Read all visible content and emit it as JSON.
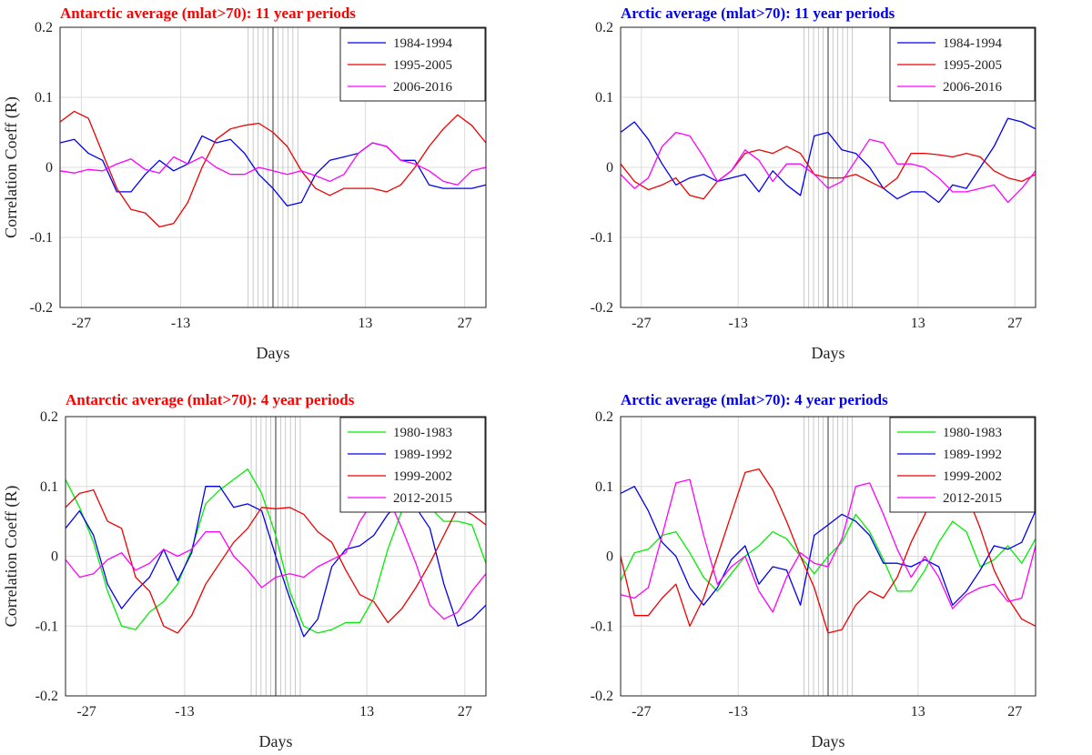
{
  "chart_data": [
    {
      "type": "line",
      "title": "Antarctic average (mlat>70): 11 year periods",
      "title_color": "#ff0000",
      "xlabel": "Days",
      "ylabel": "Correlation Coeff (R)",
      "xlim": [
        -30,
        30
      ],
      "ylim": [
        -0.2,
        0.2
      ],
      "xticks": [
        -27,
        -13,
        13,
        27
      ],
      "yticks": [
        -0.2,
        -0.1,
        0,
        0.1,
        0.2
      ],
      "ytick_labels": [
        "-0.2",
        "-0.1",
        "0",
        "0.1",
        "0.2"
      ],
      "legend_position": "top-right",
      "series": [
        {
          "name": "1984-1994",
          "color": "#0000ee",
          "x": [
            -30,
            -28,
            -26,
            -24,
            -22,
            -20,
            -18,
            -16,
            -14,
            -12,
            -10,
            -8,
            -6,
            -4,
            -2,
            0,
            2,
            4,
            6,
            8,
            10,
            12,
            14,
            16,
            18,
            20,
            22,
            24,
            26,
            28,
            30
          ],
          "y": [
            0.035,
            0.04,
            0.02,
            0.01,
            -0.035,
            -0.035,
            -0.01,
            0.01,
            -0.005,
            0.005,
            0.045,
            0.035,
            0.04,
            0.02,
            -0.01,
            -0.03,
            -0.055,
            -0.05,
            -0.01,
            0.01,
            0.015,
            0.02,
            0.035,
            0.03,
            0.01,
            0.01,
            -0.025,
            -0.03,
            -0.03,
            -0.03,
            -0.025
          ]
        },
        {
          "name": "1995-2005",
          "color": "#ee0000",
          "x": [
            -30,
            -28,
            -26,
            -24,
            -22,
            -20,
            -18,
            -16,
            -14,
            -12,
            -10,
            -8,
            -6,
            -4,
            -2,
            0,
            2,
            4,
            6,
            8,
            10,
            12,
            14,
            16,
            18,
            20,
            22,
            24,
            26,
            28,
            30
          ],
          "y": [
            0.065,
            0.08,
            0.07,
            0.02,
            -0.03,
            -0.06,
            -0.065,
            -0.085,
            -0.08,
            -0.05,
            0.0,
            0.04,
            0.055,
            0.06,
            0.063,
            0.05,
            0.03,
            -0.005,
            -0.03,
            -0.04,
            -0.03,
            -0.03,
            -0.03,
            -0.035,
            -0.025,
            0.0,
            0.03,
            0.055,
            0.075,
            0.06,
            0.035
          ]
        },
        {
          "name": "2006-2016",
          "color": "#ff00ff",
          "x": [
            -30,
            -28,
            -26,
            -24,
            -22,
            -20,
            -18,
            -16,
            -14,
            -12,
            -10,
            -8,
            -6,
            -4,
            -2,
            0,
            2,
            4,
            6,
            8,
            10,
            12,
            14,
            16,
            18,
            20,
            22,
            24,
            26,
            28,
            30
          ],
          "y": [
            -0.005,
            -0.008,
            -0.003,
            -0.005,
            0.005,
            0.012,
            -0.003,
            -0.008,
            0.015,
            0.005,
            0.015,
            0.0,
            -0.01,
            -0.01,
            0.0,
            -0.005,
            -0.01,
            -0.005,
            -0.012,
            -0.02,
            -0.01,
            0.02,
            0.035,
            0.03,
            0.01,
            0.005,
            -0.005,
            -0.02,
            -0.025,
            -0.005,
            0.0
          ]
        }
      ]
    },
    {
      "type": "line",
      "title": "Arctic average (mlat>70): 11 year periods",
      "title_color": "#0000ee",
      "xlabel": "Days",
      "ylabel": "",
      "xlim": [
        -30,
        30
      ],
      "ylim": [
        -0.2,
        0.2
      ],
      "xticks": [
        -27,
        -13,
        13,
        27
      ],
      "yticks": [
        -0.2,
        -0.1,
        0,
        0.1,
        0.2
      ],
      "ytick_labels": [
        "-0.2",
        "-0.1",
        "0",
        "0.1",
        "0.2"
      ],
      "legend_position": "top-right",
      "series": [
        {
          "name": "1984-1994",
          "color": "#0000ee",
          "x": [
            -30,
            -28,
            -26,
            -24,
            -22,
            -20,
            -18,
            -16,
            -14,
            -12,
            -10,
            -8,
            -6,
            -4,
            -2,
            0,
            2,
            4,
            6,
            8,
            10,
            12,
            14,
            16,
            18,
            20,
            22,
            24,
            26,
            28,
            30
          ],
          "y": [
            0.05,
            0.065,
            0.04,
            0.005,
            -0.025,
            -0.015,
            -0.01,
            -0.02,
            -0.015,
            -0.01,
            -0.035,
            -0.005,
            -0.025,
            -0.04,
            0.045,
            0.05,
            0.025,
            0.02,
            0.0,
            -0.03,
            -0.045,
            -0.035,
            -0.035,
            -0.05,
            -0.025,
            -0.03,
            0.0,
            0.03,
            0.07,
            0.065,
            0.055
          ]
        },
        {
          "name": "1995-2005",
          "color": "#ee0000",
          "x": [
            -30,
            -28,
            -26,
            -24,
            -22,
            -20,
            -18,
            -16,
            -14,
            -12,
            -10,
            -8,
            -6,
            -4,
            -2,
            0,
            2,
            4,
            6,
            8,
            10,
            12,
            14,
            16,
            18,
            20,
            22,
            24,
            26,
            28,
            30
          ],
          "y": [
            0.005,
            -0.02,
            -0.032,
            -0.025,
            -0.015,
            -0.04,
            -0.045,
            -0.02,
            -0.005,
            0.02,
            0.025,
            0.02,
            0.03,
            0.02,
            -0.01,
            -0.015,
            -0.015,
            -0.01,
            -0.02,
            -0.03,
            -0.015,
            0.02,
            0.02,
            0.018,
            0.015,
            0.02,
            0.015,
            -0.005,
            -0.015,
            -0.02,
            -0.01
          ]
        },
        {
          "name": "2006-2016",
          "color": "#ff00ff",
          "x": [
            -30,
            -28,
            -26,
            -24,
            -22,
            -20,
            -18,
            -16,
            -14,
            -12,
            -10,
            -8,
            -6,
            -4,
            -2,
            0,
            2,
            4,
            6,
            8,
            10,
            12,
            14,
            16,
            18,
            20,
            22,
            24,
            26,
            28,
            30
          ],
          "y": [
            -0.01,
            -0.03,
            -0.015,
            0.03,
            0.05,
            0.045,
            0.015,
            -0.02,
            -0.005,
            0.025,
            0.01,
            -0.02,
            0.005,
            0.005,
            -0.01,
            -0.03,
            -0.02,
            0.01,
            0.04,
            0.035,
            0.005,
            0.005,
            0.0,
            -0.015,
            -0.035,
            -0.035,
            -0.03,
            -0.025,
            -0.05,
            -0.03,
            -0.005
          ]
        }
      ]
    },
    {
      "type": "line",
      "title": "Antarctic average (mlat>70): 4 year periods",
      "title_color": "#ff0000",
      "xlabel": "Days",
      "ylabel": "Correlation Coeff (R)",
      "xlim": [
        -30,
        30
      ],
      "ylim": [
        -0.2,
        0.2
      ],
      "xticks": [
        -27,
        -13,
        13,
        27
      ],
      "yticks": [
        -0.2,
        -0.1,
        0,
        0.1,
        0.2
      ],
      "ytick_labels": [
        "-0.2",
        "-0.1",
        "0",
        "0.1",
        "0.2"
      ],
      "legend_position": "top-right",
      "series": [
        {
          "name": "1980-1983",
          "color": "#00ee00",
          "x": [
            -30,
            -28,
            -26,
            -24,
            -22,
            -20,
            -18,
            -16,
            -14,
            -12,
            -10,
            -8,
            -6,
            -4,
            -2,
            0,
            2,
            4,
            6,
            8,
            10,
            12,
            14,
            16,
            18,
            20,
            22,
            24,
            26,
            28,
            30
          ],
          "y": [
            0.11,
            0.07,
            0.02,
            -0.05,
            -0.1,
            -0.105,
            -0.08,
            -0.065,
            -0.04,
            0.01,
            0.075,
            0.095,
            0.11,
            0.125,
            0.09,
            0.03,
            -0.05,
            -0.1,
            -0.11,
            -0.105,
            -0.095,
            -0.095,
            -0.06,
            0.01,
            0.065,
            0.075,
            0.07,
            0.05,
            0.05,
            0.045,
            -0.01
          ]
        },
        {
          "name": "1989-1992",
          "color": "#0000ee",
          "x": [
            -30,
            -28,
            -26,
            -24,
            -22,
            -20,
            -18,
            -16,
            -14,
            -12,
            -10,
            -8,
            -6,
            -4,
            -2,
            0,
            2,
            4,
            6,
            8,
            10,
            12,
            14,
            16,
            18,
            20,
            22,
            24,
            26,
            28,
            30
          ],
          "y": [
            0.04,
            0.065,
            0.03,
            -0.04,
            -0.075,
            -0.05,
            -0.03,
            0.01,
            -0.035,
            0.005,
            0.1,
            0.1,
            0.07,
            0.075,
            0.065,
            0.0,
            -0.06,
            -0.115,
            -0.09,
            -0.015,
            0.01,
            0.015,
            0.03,
            0.06,
            0.08,
            0.07,
            0.04,
            -0.04,
            -0.1,
            -0.09,
            -0.07
          ]
        },
        {
          "name": "1999-2002",
          "color": "#ee0000",
          "x": [
            -30,
            -28,
            -26,
            -24,
            -22,
            -20,
            -18,
            -16,
            -14,
            -12,
            -10,
            -8,
            -6,
            -4,
            -2,
            0,
            2,
            4,
            6,
            8,
            10,
            12,
            14,
            16,
            18,
            20,
            22,
            24,
            26,
            28,
            30
          ],
          "y": [
            0.07,
            0.09,
            0.095,
            0.05,
            0.04,
            -0.03,
            -0.05,
            -0.1,
            -0.11,
            -0.085,
            -0.04,
            -0.01,
            0.02,
            0.04,
            0.07,
            0.068,
            0.07,
            0.06,
            0.035,
            0.02,
            -0.02,
            -0.055,
            -0.065,
            -0.095,
            -0.075,
            -0.045,
            -0.01,
            0.03,
            0.07,
            0.06,
            0.045
          ]
        },
        {
          "name": "2012-2015",
          "color": "#ff00ff",
          "x": [
            -30,
            -28,
            -26,
            -24,
            -22,
            -20,
            -18,
            -16,
            -14,
            -12,
            -10,
            -8,
            -6,
            -4,
            -2,
            0,
            2,
            4,
            6,
            8,
            10,
            12,
            14,
            16,
            18,
            20,
            22,
            24,
            26,
            28,
            30
          ],
          "y": [
            -0.005,
            -0.03,
            -0.025,
            -0.005,
            0.005,
            -0.02,
            -0.01,
            0.01,
            0.0,
            0.01,
            0.035,
            0.035,
            0.0,
            -0.02,
            -0.045,
            -0.03,
            -0.025,
            -0.03,
            -0.015,
            -0.005,
            0.005,
            0.05,
            0.08,
            0.085,
            0.04,
            -0.01,
            -0.07,
            -0.09,
            -0.08,
            -0.05,
            -0.025
          ]
        }
      ]
    },
    {
      "type": "line",
      "title": "Arctic average (mlat>70): 4 year periods",
      "title_color": "#0000ee",
      "xlabel": "Days",
      "ylabel": "",
      "xlim": [
        -30,
        30
      ],
      "ylim": [
        -0.2,
        0.2
      ],
      "xticks": [
        -27,
        -13,
        13,
        27
      ],
      "yticks": [
        -0.2,
        -0.1,
        0,
        0.1,
        0.2
      ],
      "ytick_labels": [
        "-0.2",
        "-0.1",
        "0",
        "0.1",
        "0.2"
      ],
      "legend_position": "top-right",
      "series": [
        {
          "name": "1980-1983",
          "color": "#00ee00",
          "x": [
            -30,
            -28,
            -26,
            -24,
            -22,
            -20,
            -18,
            -16,
            -14,
            -12,
            -10,
            -8,
            -6,
            -4,
            -2,
            0,
            2,
            4,
            6,
            8,
            10,
            12,
            14,
            16,
            18,
            20,
            22,
            24,
            26,
            28,
            30
          ],
          "y": [
            -0.035,
            0.005,
            0.01,
            0.03,
            0.035,
            0.005,
            -0.03,
            -0.05,
            -0.025,
            0.0,
            0.015,
            0.035,
            0.025,
            0.0,
            -0.025,
            0.0,
            0.02,
            0.06,
            0.035,
            -0.005,
            -0.05,
            -0.05,
            -0.02,
            0.02,
            0.05,
            0.035,
            -0.015,
            -0.005,
            0.015,
            -0.01,
            0.025
          ]
        },
        {
          "name": "1989-1992",
          "color": "#0000ee",
          "x": [
            -30,
            -28,
            -26,
            -24,
            -22,
            -20,
            -18,
            -16,
            -14,
            -12,
            -10,
            -8,
            -6,
            -4,
            -2,
            0,
            2,
            4,
            6,
            8,
            10,
            12,
            14,
            16,
            18,
            20,
            22,
            24,
            26,
            28,
            30
          ],
          "y": [
            0.09,
            0.1,
            0.065,
            0.02,
            0.0,
            -0.045,
            -0.07,
            -0.045,
            -0.005,
            0.015,
            -0.04,
            -0.015,
            -0.02,
            -0.07,
            0.03,
            0.045,
            0.06,
            0.05,
            0.03,
            -0.01,
            -0.01,
            -0.015,
            -0.005,
            -0.015,
            -0.07,
            -0.05,
            -0.02,
            0.015,
            0.01,
            0.02,
            0.065
          ]
        },
        {
          "name": "1999-2002",
          "color": "#ee0000",
          "x": [
            -30,
            -28,
            -26,
            -24,
            -22,
            -20,
            -18,
            -16,
            -14,
            -12,
            -10,
            -8,
            -6,
            -4,
            -2,
            0,
            2,
            4,
            6,
            8,
            10,
            12,
            14,
            16,
            18,
            20,
            22,
            24,
            26,
            28,
            30
          ],
          "y": [
            0.0,
            -0.085,
            -0.085,
            -0.06,
            -0.04,
            -0.1,
            -0.06,
            0.0,
            0.06,
            0.12,
            0.125,
            0.095,
            0.05,
            0.0,
            -0.045,
            -0.11,
            -0.105,
            -0.07,
            -0.05,
            -0.06,
            -0.03,
            0.02,
            0.06,
            0.11,
            0.12,
            0.09,
            0.04,
            -0.02,
            -0.06,
            -0.09,
            -0.1
          ]
        },
        {
          "name": "2012-2015",
          "color": "#ff00ff",
          "x": [
            -30,
            -28,
            -26,
            -24,
            -22,
            -20,
            -18,
            -16,
            -14,
            -12,
            -10,
            -8,
            -6,
            -4,
            -2,
            0,
            2,
            4,
            6,
            8,
            10,
            12,
            14,
            16,
            18,
            20,
            22,
            24,
            26,
            28,
            30
          ],
          "y": [
            -0.055,
            -0.06,
            -0.045,
            0.03,
            0.105,
            0.11,
            0.03,
            -0.04,
            -0.015,
            0.0,
            -0.05,
            -0.08,
            -0.03,
            0.005,
            -0.01,
            -0.015,
            0.025,
            0.1,
            0.105,
            0.06,
            0.01,
            -0.03,
            0.0,
            -0.03,
            -0.075,
            -0.055,
            -0.045,
            -0.04,
            -0.065,
            -0.06,
            0.015
          ]
        }
      ]
    }
  ]
}
